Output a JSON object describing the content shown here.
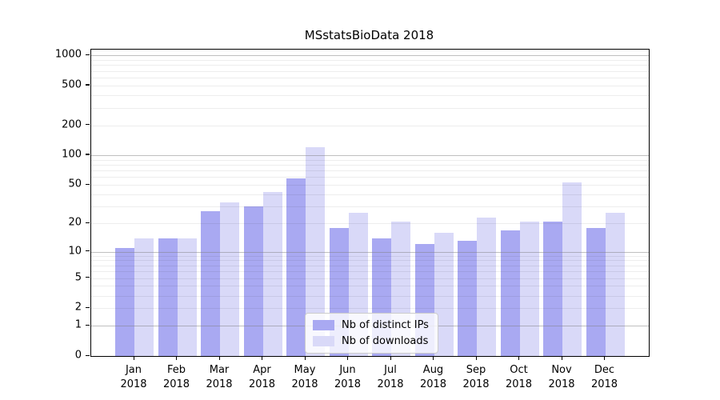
{
  "chart_data": {
    "type": "bar",
    "title": "MSstatsBioData 2018",
    "x_year": "2018",
    "categories": [
      "Jan",
      "Feb",
      "Mar",
      "Apr",
      "May",
      "Jun",
      "Jul",
      "Aug",
      "Sep",
      "Oct",
      "Nov",
      "Dec"
    ],
    "series": [
      {
        "name": "Nb of distinct IPs",
        "color": "#a9a9f2",
        "values": [
          11,
          14,
          27,
          30,
          58,
          18,
          14,
          12,
          13,
          17,
          21,
          18
        ]
      },
      {
        "name": "Nb of downloads",
        "color": "#d9d9f8",
        "values": [
          14,
          14,
          33,
          42,
          120,
          26,
          21,
          16,
          23,
          21,
          53,
          26
        ]
      }
    ],
    "yscale": "log1p",
    "ylim": [
      0,
      1140
    ],
    "yticks": [
      0,
      1,
      2,
      5,
      10,
      20,
      50,
      100,
      200,
      500,
      1000
    ],
    "major_gridlines": [
      1,
      10,
      100,
      1000
    ],
    "minor_gridlines": [
      2,
      3,
      4,
      5,
      6,
      7,
      8,
      9,
      20,
      30,
      40,
      50,
      60,
      70,
      80,
      90,
      200,
      300,
      400,
      500,
      600,
      700,
      800,
      900
    ],
    "grid": "on",
    "legend_position": "lower center",
    "colors": {
      "axis": "#000000",
      "background": "#ffffff"
    }
  }
}
